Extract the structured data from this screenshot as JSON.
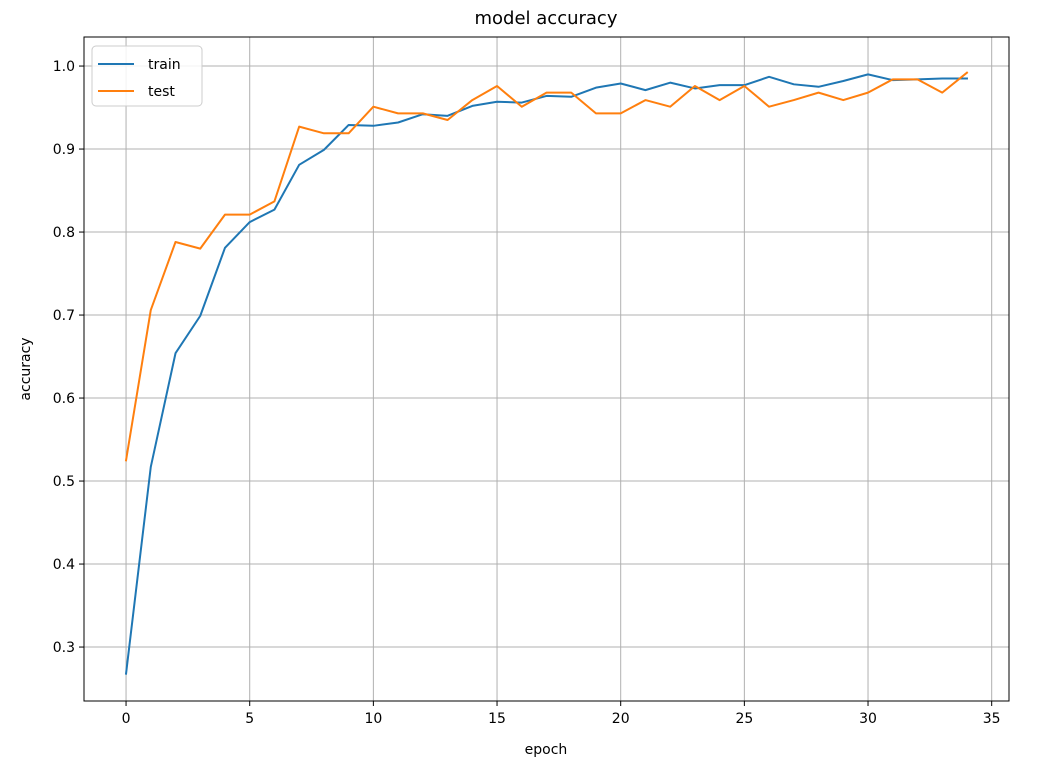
{
  "chart_data": {
    "type": "line",
    "title": "model accuracy",
    "xlabel": "epoch",
    "ylabel": "accuracy",
    "xlim": [
      -1.7,
      35.7
    ],
    "ylim": [
      0.235,
      1.035
    ],
    "x_ticks": [
      0,
      5,
      10,
      15,
      20,
      25,
      30,
      35
    ],
    "y_ticks": [
      0.3,
      0.4,
      0.5,
      0.6,
      0.7,
      0.8,
      0.9,
      1.0
    ],
    "x_tick_labels": [
      "0",
      "5",
      "10",
      "15",
      "20",
      "25",
      "30",
      "35"
    ],
    "y_tick_labels": [
      "0.3",
      "0.4",
      "0.5",
      "0.6",
      "0.7",
      "0.8",
      "0.9",
      "1.0"
    ],
    "grid": true,
    "legend_position": "top-left",
    "x": [
      0,
      1,
      2,
      3,
      4,
      5,
      6,
      7,
      8,
      9,
      10,
      11,
      12,
      13,
      14,
      15,
      16,
      17,
      18,
      19,
      20,
      21,
      22,
      23,
      24,
      25,
      26,
      27,
      28,
      29,
      30,
      31,
      32,
      33,
      34
    ],
    "series": [
      {
        "name": "train",
        "color": "#1f77b4",
        "values": [
          0.268,
          0.517,
          0.654,
          0.699,
          0.781,
          0.812,
          0.827,
          0.881,
          0.899,
          0.929,
          0.928,
          0.932,
          0.942,
          0.94,
          0.952,
          0.957,
          0.956,
          0.964,
          0.963,
          0.974,
          0.979,
          0.971,
          0.98,
          0.973,
          0.977,
          0.977,
          0.987,
          0.978,
          0.975,
          0.982,
          0.99,
          0.983,
          0.984,
          0.985,
          0.985
        ]
      },
      {
        "name": "test",
        "color": "#ff7f0e",
        "values": [
          0.525,
          0.706,
          0.788,
          0.78,
          0.821,
          0.821,
          0.837,
          0.927,
          0.919,
          0.919,
          0.951,
          0.943,
          0.943,
          0.935,
          0.959,
          0.976,
          0.951,
          0.968,
          0.968,
          0.943,
          0.943,
          0.959,
          0.951,
          0.976,
          0.959,
          0.976,
          0.951,
          0.959,
          0.968,
          0.959,
          0.968,
          0.984,
          0.984,
          0.968,
          0.992
        ]
      }
    ]
  }
}
